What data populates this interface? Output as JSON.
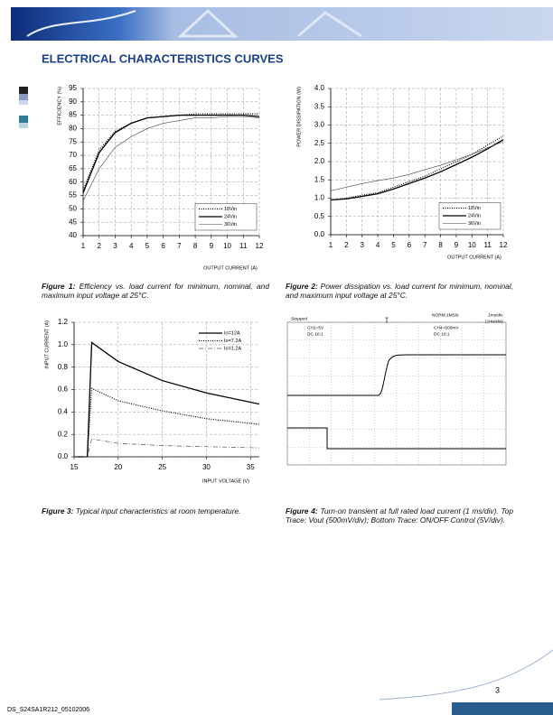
{
  "header": {
    "title": "ELECTRICAL CHARACTERISTICS CURVES"
  },
  "chart_data": [
    {
      "type": "line",
      "xlabel": "OUTPUT CURRENT (A)",
      "ylabel": "EFFICIENCY (%)",
      "x": [
        1,
        2,
        3,
        4,
        5,
        6,
        7,
        8,
        9,
        10,
        11,
        12
      ],
      "series": [
        {
          "name": "18Vin",
          "color": "#000000",
          "style": "dotted",
          "values": [
            57,
            72,
            79,
            82,
            84,
            84.5,
            85,
            85.5,
            85.5,
            85.5,
            85.5,
            85.5
          ]
        },
        {
          "name": "24Vin",
          "color": "#000000",
          "style": "solid",
          "values": [
            56,
            71,
            78.5,
            82,
            84,
            84.5,
            85,
            85,
            85,
            85,
            85,
            84.5
          ]
        },
        {
          "name": "36Vin",
          "color": "#444444",
          "style": "thin",
          "values": [
            53,
            65,
            73,
            77,
            80,
            82,
            83,
            84,
            84,
            84.5,
            84.5,
            84
          ]
        }
      ],
      "xlim": [
        1,
        12
      ],
      "xticks": [
        1,
        2,
        3,
        4,
        5,
        6,
        7,
        8,
        9,
        10,
        11,
        12
      ],
      "ylim": [
        40,
        95
      ],
      "yticks": [
        40,
        45,
        50,
        55,
        60,
        65,
        70,
        75,
        80,
        85,
        90,
        95
      ],
      "grid": true,
      "legend": "lower right",
      "caption": {
        "label": "Figure 1:",
        "text": "Efficiency vs. load current for minimum, nominal, and maximum input voltage at 25°C."
      }
    },
    {
      "type": "line",
      "xlabel": "OUTPUT CURRENT (A)",
      "ylabel": "POWER DISSIPATION (W)",
      "x": [
        1,
        2,
        3,
        4,
        5,
        6,
        7,
        8,
        9,
        10,
        11,
        12
      ],
      "series": [
        {
          "name": "18Vin",
          "color": "#000000",
          "style": "dotted",
          "values": [
            0.95,
            1.0,
            1.08,
            1.15,
            1.3,
            1.45,
            1.6,
            1.8,
            2.0,
            2.2,
            2.45,
            2.7
          ]
        },
        {
          "name": "24Vin",
          "color": "#000000",
          "style": "solid",
          "values": [
            0.95,
            0.98,
            1.05,
            1.12,
            1.25,
            1.4,
            1.55,
            1.72,
            1.92,
            2.12,
            2.35,
            2.6
          ]
        },
        {
          "name": "36Vin",
          "color": "#444444",
          "style": "thin",
          "values": [
            1.2,
            1.3,
            1.4,
            1.48,
            1.55,
            1.65,
            1.78,
            1.9,
            2.05,
            2.2,
            2.38,
            2.55
          ]
        }
      ],
      "xlim": [
        1,
        12
      ],
      "xticks": [
        1,
        2,
        3,
        4,
        5,
        6,
        7,
        8,
        9,
        10,
        11,
        12
      ],
      "ylim": [
        0,
        4
      ],
      "yticks": [
        {
          "value": 0,
          "label": "0.0"
        },
        0.5,
        {
          "value": 1,
          "label": "1.0"
        },
        1.5,
        {
          "value": 2,
          "label": "2.0"
        },
        2.5,
        {
          "value": 3,
          "label": "3.0"
        },
        3.5,
        {
          "value": 4,
          "label": "4.0"
        }
      ],
      "grid": true,
      "legend": "lower right",
      "caption": {
        "label": "Figure 2:",
        "text": "Power dissipation vs. load current for minimum, nominal, and maximum input voltage at 25°C."
      }
    },
    {
      "type": "line",
      "xlabel": "INPUT VOLTAGE (V)",
      "ylabel": "INPUT CURRENT (A)",
      "x": [
        15,
        16.5,
        17,
        20,
        25,
        30,
        36
      ],
      "series": [
        {
          "name": "Io=12A",
          "color": "#000000",
          "style": "solid",
          "values": [
            0,
            0,
            1.02,
            0.85,
            0.68,
            0.57,
            0.47
          ]
        },
        {
          "name": "Io=7.2A",
          "color": "#000000",
          "style": "dotted",
          "values": [
            0,
            0,
            0.61,
            0.5,
            0.41,
            0.34,
            0.29
          ]
        },
        {
          "name": "Io=1.2A",
          "color": "#555555",
          "style": "dashdot",
          "values": [
            0,
            0,
            0.16,
            0.12,
            0.1,
            0.09,
            0.08
          ]
        }
      ],
      "xlim": [
        15,
        36
      ],
      "xticks": [
        15,
        20,
        25,
        30,
        35
      ],
      "ylim": [
        0,
        1.2
      ],
      "yticks": [
        {
          "value": 0,
          "label": "0.0"
        },
        0.2,
        0.4,
        0.6,
        0.8,
        {
          "value": 1,
          "label": "1.0"
        },
        1.2
      ],
      "grid": true,
      "legend": "upper right",
      "caption": {
        "label": "Figure 3:",
        "text": "Typical input characteristics at room temperature."
      }
    },
    {
      "type": "scope",
      "annotations": [
        "Stopped",
        "CH1=5V",
        "DC 10:1",
        "NORM:1MS/s",
        "1ms/div",
        "(1ms/div)",
        "CH4=500mV",
        "DC 10:1"
      ],
      "caption": {
        "label": "Figure 4:",
        "text": "Turn-on transient at full rated load current (1 ms/div). Top Trace: Vout (500mV/div); Bottom Trace: ON/OFF Control (5V/div)."
      }
    }
  ],
  "footer": {
    "page": "3",
    "doc_id": "DS_S24SA1R212_05102006"
  }
}
